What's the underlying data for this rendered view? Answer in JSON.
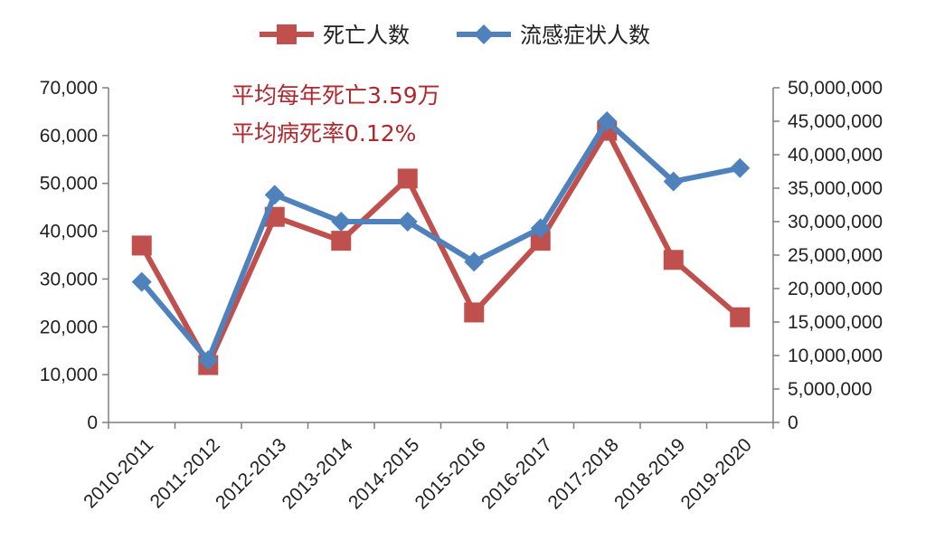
{
  "chart_data": {
    "type": "line",
    "categories": [
      "2010-2011",
      "2011-2012",
      "2012-2013",
      "2013-2014",
      "2014-2015",
      "2015-2016",
      "2016-2017",
      "2017-2018",
      "2018-2019",
      "2019-2020"
    ],
    "series": [
      {
        "name": "死亡人数",
        "axis": "left",
        "color": "#c0504d",
        "marker": "square",
        "values": [
          37000,
          12000,
          43000,
          38000,
          51000,
          23000,
          38000,
          61000,
          34000,
          22000
        ]
      },
      {
        "name": "流感症状人数",
        "axis": "right",
        "color": "#4f81bd",
        "marker": "diamond",
        "values": [
          21000000,
          9300000,
          34000000,
          30000000,
          30000000,
          24000000,
          29000000,
          45000000,
          36000000,
          38000000
        ]
      }
    ],
    "left_axis": {
      "min": 0,
      "max": 70000,
      "step": 10000,
      "tick_labels": [
        "0",
        "10,000",
        "20,000",
        "30,000",
        "40,000",
        "50,000",
        "60,000",
        "70,000"
      ]
    },
    "right_axis": {
      "min": 0,
      "max": 50000000,
      "step": 5000000,
      "tick_labels": [
        "0",
        "5,000,000",
        "10,000,000",
        "15,000,000",
        "20,000,000",
        "25,000,000",
        "30,000,000",
        "35,000,000",
        "40,000,000",
        "45,000,000",
        "50,000,000"
      ]
    },
    "annotations": [
      "平均每年死亡3.59万",
      "平均病死率0.12%"
    ],
    "legend_position": "top",
    "grid": false
  }
}
